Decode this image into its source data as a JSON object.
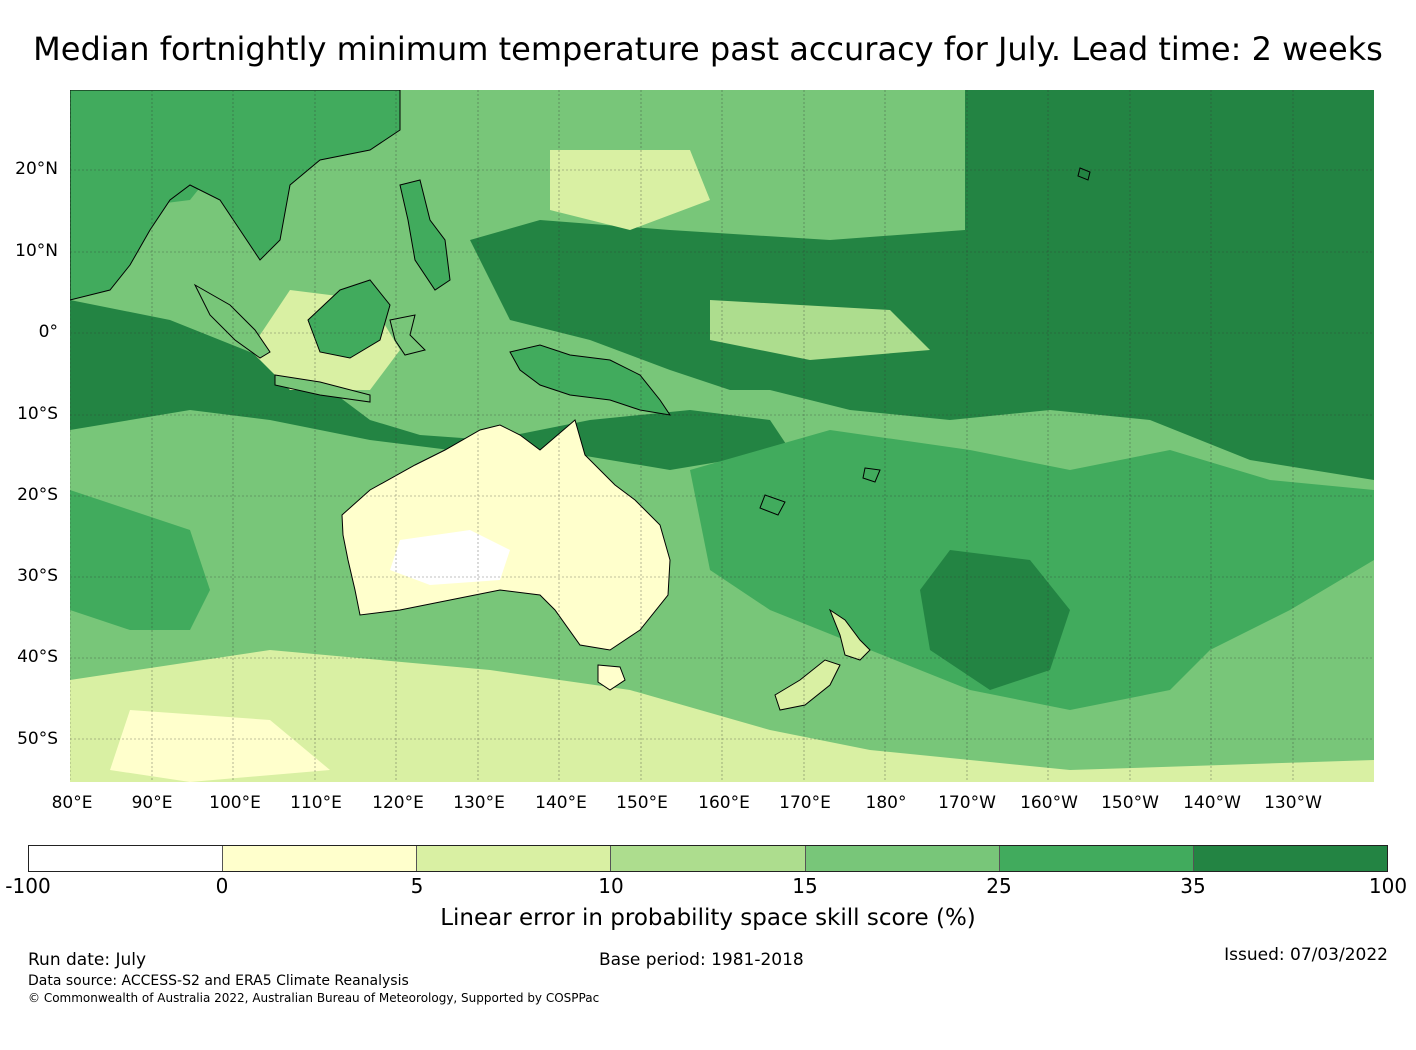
{
  "title": "Median fortnightly minimum temperature past accuracy for July. Lead time: 2 weeks",
  "map": {
    "lat_labels": [
      "20°N",
      "10°N",
      "0°",
      "10°S",
      "20°S",
      "30°S",
      "40°S",
      "50°S"
    ],
    "lon_labels": [
      "80°E",
      "90°E",
      "100°E",
      "110°E",
      "120°E",
      "130°E",
      "140°E",
      "150°E",
      "160°E",
      "170°E",
      "180°",
      "170°W",
      "160°W",
      "150°W",
      "140°W",
      "130°W"
    ],
    "lat_range": [
      -55,
      30
    ],
    "lon_range": [
      80,
      240
    ]
  },
  "colorbar": {
    "ticks": [
      "-100",
      "0",
      "5",
      "10",
      "15",
      "25",
      "35",
      "100"
    ],
    "colors": [
      "#ffffff",
      "#ffffcc",
      "#d9f0a3",
      "#addd8e",
      "#78c679",
      "#41ab5d",
      "#238443"
    ],
    "label": "Linear error in probability space skill score (%)"
  },
  "footer": {
    "run_date": "Run date: July",
    "base_period": "Base period: 1981-2018",
    "issued": "Issued: 07/03/2022",
    "data_source": "Data source: ACCESS-S2 and ERA5 Climate Reanalysis",
    "copyright": "© Commonwealth of Australia 2022, Australian Bureau of Meteorology, Supported by COSPPac"
  }
}
